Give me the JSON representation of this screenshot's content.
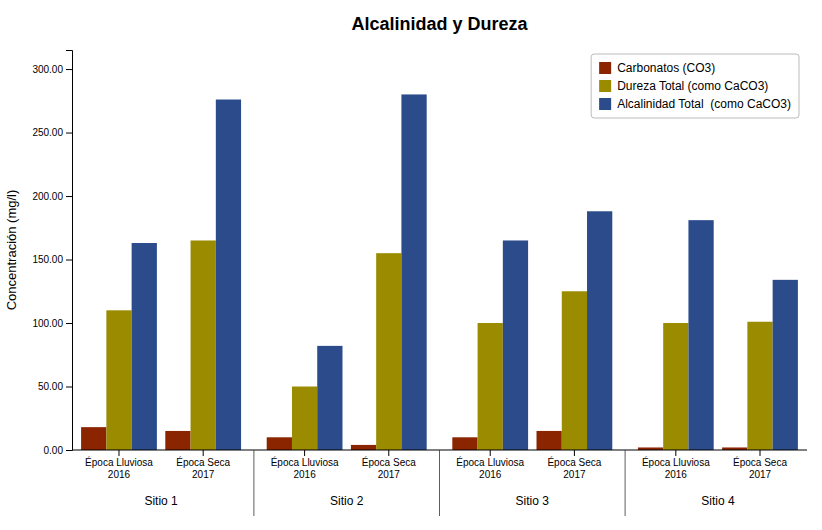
{
  "chart_data": {
    "type": "bar",
    "title": "Alcalinidad y Dureza",
    "ylabel": "Concentración (mg/l)",
    "groups": [
      "Sitio 1",
      "Sitio 2",
      "Sitio 3",
      "Sitio 4"
    ],
    "categories": [
      "Época Lluviosa\n2016",
      "Época Seca\n2017",
      "Época Lluviosa\n2016",
      "Época Seca\n2017",
      "Época Lluviosa\n2016",
      "Época Seca\n2017",
      "Época Lluviosa\n2016",
      "Época Seca\n2017"
    ],
    "series": [
      {
        "name": "Carbonatos (CO3)",
        "color": "#8B2500",
        "values": [
          18,
          15,
          10,
          4,
          10,
          15,
          2,
          2
        ]
      },
      {
        "name": "Dureza Total (como CaCO3)",
        "color": "#9B8B00",
        "values": [
          110,
          165,
          50,
          155,
          100,
          125,
          100,
          101
        ]
      },
      {
        "name": "Alcalinidad Total  (como CaCO3)",
        "color": "#2B4B8B",
        "values": [
          163,
          276,
          82,
          280,
          165,
          188,
          181,
          134
        ]
      }
    ],
    "ylim": [
      0,
      315
    ],
    "yticks": [
      {
        "value": 0,
        "label": "0.00"
      },
      {
        "value": 50,
        "label": "50.00"
      },
      {
        "value": 100,
        "label": "100.00"
      },
      {
        "value": 150,
        "label": "150.00"
      },
      {
        "value": 200,
        "label": "200.00"
      },
      {
        "value": 250,
        "label": "250.00"
      },
      {
        "value": 300,
        "label": "300.00"
      }
    ],
    "grid": false,
    "legend": "upper right"
  }
}
